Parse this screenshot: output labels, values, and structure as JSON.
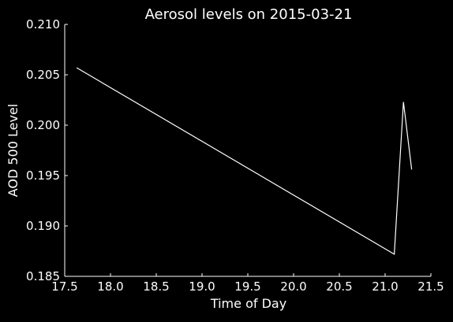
{
  "chart_data": {
    "type": "line",
    "title": "Aerosol levels on 2015-03-21",
    "xlabel": "Time of Day",
    "ylabel": "AOD 500 Level",
    "xlim": [
      17.5,
      21.5
    ],
    "ylim": [
      0.185,
      0.21
    ],
    "x_ticks": [
      "17.5",
      "18.0",
      "18.5",
      "19.0",
      "19.5",
      "20.0",
      "20.5",
      "21.0",
      "21.5"
    ],
    "y_ticks": [
      "0.185",
      "0.190",
      "0.195",
      "0.200",
      "0.205",
      "0.210"
    ],
    "grid": false,
    "series": [
      {
        "x": [
          17.63,
          21.1,
          21.2,
          21.29
        ],
        "y": [
          0.2057,
          0.1872,
          0.2023,
          0.1956
        ]
      }
    ]
  },
  "colors": {
    "background": "#000000",
    "line": "#ffffff",
    "axis": "#ffffff",
    "text": "#ffffff"
  }
}
